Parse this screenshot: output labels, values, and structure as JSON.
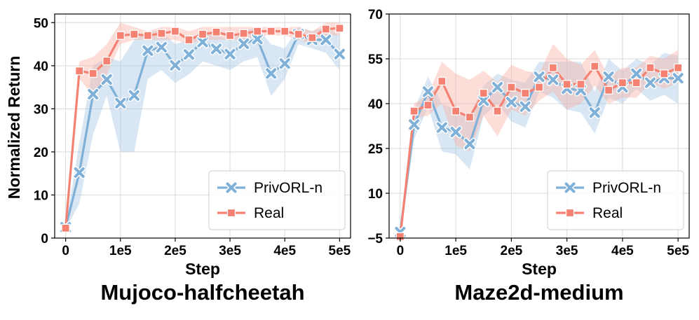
{
  "legend": {
    "series_a": "PrivORL-n",
    "series_b": "Real"
  },
  "colors": {
    "privorl": "#7fb0d8",
    "real": "#f58172",
    "privorl_band": "#a9c9e5",
    "real_band": "#fbb3a9"
  },
  "chart_data": [
    {
      "type": "line",
      "title": "Mujoco-halfcheetah",
      "xlabel": "Step",
      "ylabel": "Normalized Return",
      "xlim": [
        -20000,
        520000
      ],
      "ylim": [
        0,
        52
      ],
      "xticks": [
        0,
        100000,
        200000,
        300000,
        400000,
        500000
      ],
      "xtick_labels": [
        "0",
        "1e5",
        "2e5",
        "3e5",
        "4e5",
        "5e5"
      ],
      "yticks": [
        0,
        10,
        20,
        30,
        40,
        50
      ],
      "ytick_labels": [
        "0",
        "10",
        "20",
        "30",
        "40",
        "50"
      ],
      "legend_position": "bottom-right",
      "x": [
        0,
        25000,
        50000,
        75000,
        100000,
        125000,
        150000,
        175000,
        200000,
        225000,
        250000,
        275000,
        300000,
        325000,
        350000,
        375000,
        400000,
        425000,
        450000,
        475000,
        500000
      ],
      "series": [
        {
          "name": "PrivORL-n",
          "values": [
            2.5,
            15.2,
            33.4,
            36.8,
            31.3,
            33.1,
            43.5,
            44.3,
            40.1,
            42.6,
            45.5,
            43.9,
            42.7,
            45.1,
            46.2,
            38.2,
            40.5,
            47.3,
            46.0,
            46.0,
            42.7
          ],
          "lower": [
            2.0,
            8.0,
            24.0,
            33.0,
            20.0,
            20.0,
            37.0,
            39.0,
            36.0,
            38.0,
            41.0,
            40.0,
            39.0,
            41.0,
            42.0,
            33.0,
            37.0,
            45.0,
            44.0,
            43.0,
            39.0
          ],
          "upper": [
            3.0,
            22.0,
            40.0,
            42.0,
            41.0,
            46.0,
            48.0,
            48.0,
            45.0,
            46.0,
            48.0,
            47.0,
            46.0,
            48.0,
            49.0,
            45.0,
            44.0,
            49.0,
            48.0,
            49.0,
            47.0
          ]
        },
        {
          "name": "Real",
          "values": [
            2.3,
            38.8,
            38.2,
            41.1,
            47.0,
            47.3,
            47.0,
            47.5,
            48.0,
            46.0,
            47.3,
            47.8,
            47.0,
            47.5,
            48.0,
            48.0,
            48.0,
            47.3,
            46.5,
            48.5,
            48.7
          ],
          "lower": [
            2.0,
            37.0,
            33.0,
            38.0,
            45.0,
            46.0,
            46.0,
            46.0,
            46.0,
            45.0,
            46.0,
            46.0,
            46.0,
            46.0,
            47.0,
            47.0,
            47.0,
            46.0,
            45.0,
            47.0,
            47.0
          ],
          "upper": [
            3.0,
            41.0,
            42.0,
            45.0,
            50.0,
            49.0,
            48.0,
            49.0,
            49.0,
            48.0,
            49.0,
            49.0,
            49.0,
            49.0,
            49.0,
            49.0,
            49.0,
            49.0,
            48.0,
            50.0,
            50.0
          ]
        }
      ]
    },
    {
      "type": "line",
      "title": "Maze2d-medium",
      "xlabel": "Step",
      "ylabel": "",
      "xlim": [
        -20000,
        520000
      ],
      "ylim": [
        -5,
        70
      ],
      "xticks": [
        0,
        100000,
        200000,
        300000,
        400000,
        500000
      ],
      "xtick_labels": [
        "0",
        "1e5",
        "2e5",
        "3e5",
        "4e5",
        "5e5"
      ],
      "yticks": [
        -5,
        10,
        25,
        40,
        55,
        70
      ],
      "ytick_labels": [
        "−5",
        "10",
        "25",
        "40",
        "55",
        "70"
      ],
      "legend_position": "bottom-right",
      "x": [
        0,
        25000,
        50000,
        75000,
        100000,
        125000,
        150000,
        175000,
        200000,
        225000,
        250000,
        275000,
        300000,
        325000,
        350000,
        375000,
        400000,
        425000,
        450000,
        475000,
        500000
      ],
      "series": [
        {
          "name": "PrivORL-n",
          "values": [
            -3.0,
            33.0,
            44.0,
            32.0,
            30.5,
            26.5,
            41.0,
            45.5,
            40.5,
            39.0,
            49.0,
            48.0,
            45.0,
            44.5,
            37.0,
            49.0,
            45.5,
            50.0,
            47.0,
            48.5,
            48.5
          ],
          "lower": [
            -4.0,
            28.0,
            39.0,
            24.0,
            23.0,
            18.0,
            36.0,
            40.0,
            34.0,
            32.0,
            44.0,
            42.0,
            38.0,
            37.0,
            30.0,
            42.0,
            40.0,
            45.0,
            41.0,
            43.0,
            40.0
          ],
          "upper": [
            -2.0,
            38.0,
            49.0,
            40.0,
            38.0,
            36.0,
            46.0,
            50.0,
            48.0,
            47.0,
            54.0,
            54.0,
            54.0,
            54.0,
            44.0,
            55.0,
            51.0,
            55.0,
            53.0,
            57.0,
            56.0
          ]
        },
        {
          "name": "Real",
          "values": [
            -4.5,
            37.5,
            39.5,
            47.5,
            37.5,
            35.5,
            43.5,
            37.5,
            45.5,
            43.5,
            45.5,
            52.0,
            46.5,
            46.5,
            52.5,
            44.5,
            47.0,
            47.0,
            52.0,
            50.0,
            52.0
          ],
          "lower": [
            -5.0,
            35.0,
            36.0,
            40.0,
            26.0,
            24.0,
            36.0,
            29.0,
            38.0,
            36.0,
            41.0,
            44.0,
            38.0,
            40.0,
            46.0,
            40.0,
            42.0,
            42.0,
            47.0,
            45.0,
            47.0
          ],
          "upper": [
            -4.0,
            40.0,
            43.0,
            54.0,
            50.0,
            48.0,
            51.0,
            47.0,
            53.0,
            51.0,
            50.0,
            60.0,
            55.0,
            53.0,
            58.0,
            49.0,
            52.0,
            52.0,
            56.0,
            55.0,
            58.0
          ]
        }
      ]
    }
  ]
}
